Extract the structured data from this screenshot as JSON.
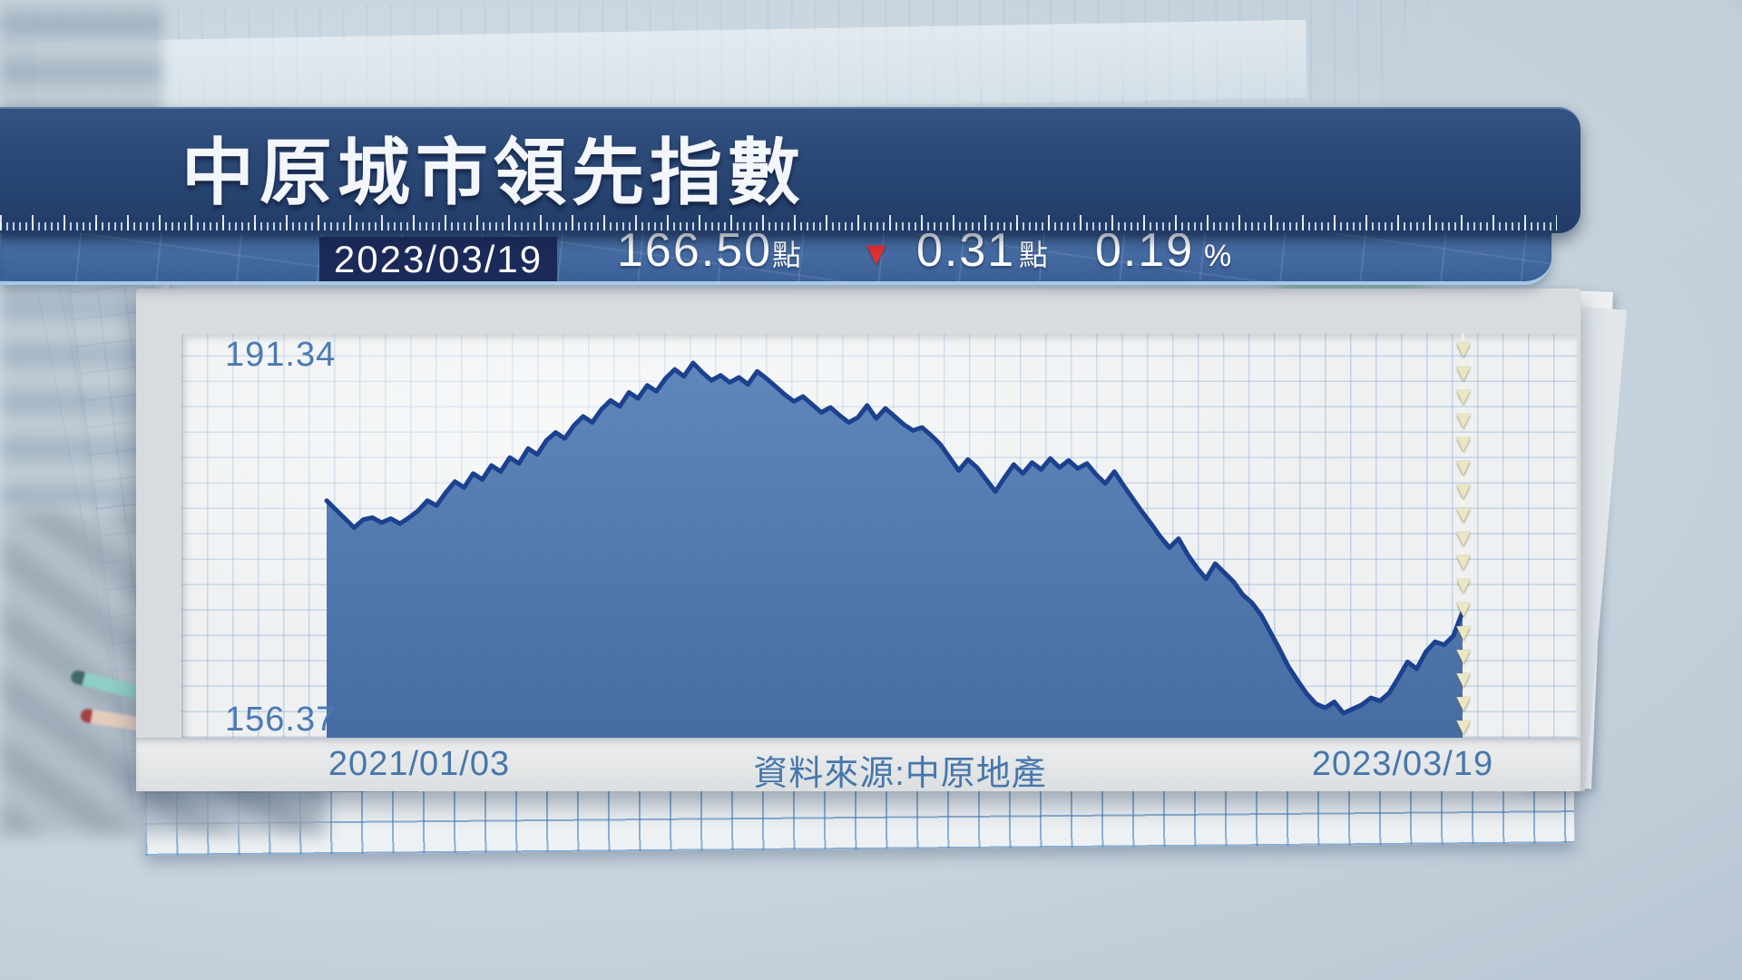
{
  "header": {
    "title": "中原城市領先指數"
  },
  "ticker": {
    "date": "2023/03/19",
    "index_value": "166.50",
    "index_unit": "點",
    "down_arrow": "▼",
    "change_value": "0.31",
    "change_unit": "點",
    "change_percent": "0.19",
    "percent_sign": "%"
  },
  "chart": {
    "y_max_label": "191.34",
    "y_min_label": "156.37",
    "x_start_label": "2021/01/03",
    "source_label": "資料來源:中原地產",
    "x_end_label": "2023/03/19",
    "marker_glyph": "▼",
    "marker_arrow_count": 19
  },
  "chart_data": {
    "type": "area",
    "title": "中原城市領先指數",
    "x_range": [
      "2021/01/03",
      "2023/03/19"
    ],
    "ylim": [
      156.37,
      191.34
    ],
    "unit": "點",
    "latest": {
      "date": "2023/03/19",
      "value": 166.5,
      "change": -0.31,
      "change_pct": -0.19
    },
    "grid": true,
    "legend": false,
    "colors": {
      "line": "#1c418f",
      "fill_top": "#5b83ba",
      "fill_bottom": "#41689f",
      "accent_down": "#e22f2f"
    },
    "values": [
      177.6,
      176.7,
      175.8,
      174.9,
      175.7,
      175.9,
      175.4,
      175.8,
      175.3,
      175.9,
      176.6,
      177.6,
      177.1,
      178.4,
      179.5,
      178.9,
      180.3,
      179.7,
      181.1,
      180.5,
      181.9,
      181.3,
      182.8,
      182.2,
      183.6,
      184.4,
      183.8,
      185.1,
      186.0,
      185.4,
      186.7,
      187.6,
      187.0,
      188.4,
      187.8,
      189.1,
      188.5,
      189.8,
      190.7,
      190.0,
      191.34,
      190.4,
      189.6,
      190.1,
      189.4,
      189.9,
      189.2,
      190.5,
      189.8,
      189.0,
      188.2,
      187.5,
      188.0,
      187.2,
      186.4,
      186.9,
      186.1,
      185.4,
      185.9,
      187.1,
      185.8,
      186.8,
      186.0,
      185.2,
      184.6,
      184.9,
      184.1,
      183.2,
      181.9,
      180.6,
      181.7,
      180.9,
      179.7,
      178.5,
      179.9,
      181.2,
      180.3,
      181.4,
      180.7,
      181.8,
      180.9,
      181.6,
      180.8,
      181.3,
      180.2,
      179.3,
      180.5,
      179.1,
      177.8,
      176.5,
      175.3,
      174.0,
      172.9,
      173.8,
      172.2,
      170.9,
      169.8,
      171.3,
      170.4,
      169.5,
      168.2,
      167.4,
      166.2,
      164.5,
      162.8,
      161.0,
      159.6,
      158.3,
      157.3,
      156.9,
      157.5,
      156.37,
      156.8,
      157.2,
      157.9,
      157.6,
      158.4,
      159.9,
      161.5,
      160.8,
      162.5,
      163.5,
      163.2,
      164.1,
      166.5
    ]
  }
}
